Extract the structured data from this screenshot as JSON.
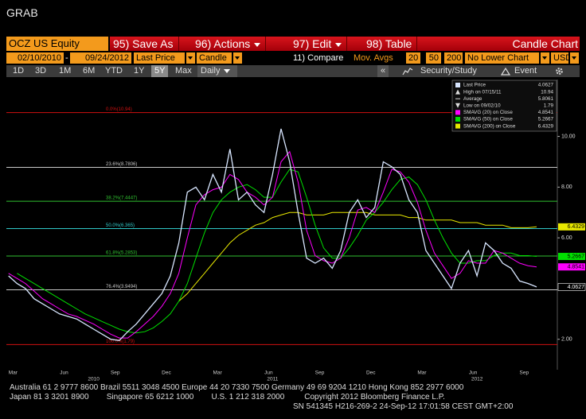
{
  "window_title": "GRAB",
  "toolbar": {
    "security": "OCZ US Equity",
    "buttons": [
      "95) Save As",
      "96) Actions",
      "97) Edit",
      "98) Table"
    ],
    "chart_title": "Candle Chart"
  },
  "settings": {
    "start_date": "02/10/2010",
    "date_separator": "-",
    "end_date": "09/24/2012",
    "field": "Last Price",
    "style": "Candle",
    "compare": "11) Compare",
    "mov_avgs_label": "Mov. Avgs",
    "mov_avgs": [
      20,
      50,
      200
    ],
    "lower_chart": "No Lower Chart",
    "currency": "USD"
  },
  "periods": {
    "options": [
      "1D",
      "3D",
      "1M",
      "6M",
      "YTD",
      "1Y",
      "5Y",
      "Max"
    ],
    "selected": "5Y",
    "frequency": "Daily",
    "collapse": "«",
    "security_study": "Security/Study",
    "event": "Event"
  },
  "chart_data": {
    "type": "line",
    "categories": [
      null,
      "Mar",
      null,
      null,
      null,
      null,
      null,
      "Jun",
      null,
      null,
      null,
      null,
      null,
      "Sep",
      null,
      null,
      null,
      null,
      null,
      "Dec",
      null,
      null,
      null,
      null,
      null,
      "Mar",
      null,
      null,
      null,
      null,
      null,
      "Jun",
      null,
      null,
      null,
      null,
      null,
      "Sep",
      null,
      null,
      null,
      null,
      null,
      "Dec",
      null,
      null,
      null,
      null,
      null,
      "Mar",
      null,
      null,
      null,
      null,
      null,
      "Jun",
      null,
      null,
      null,
      null,
      null,
      "Sep",
      null
    ],
    "category_years": [
      null,
      null,
      null,
      null,
      null,
      null,
      null,
      null,
      null,
      null,
      "2010",
      null,
      null,
      null,
      null,
      null,
      null,
      null,
      null,
      null,
      null,
      null,
      null,
      null,
      null,
      null,
      null,
      null,
      null,
      null,
      null,
      "2011",
      null,
      null,
      null,
      null,
      null,
      null,
      null,
      null,
      null,
      null,
      null,
      null,
      null,
      null,
      null,
      null,
      null,
      null,
      null,
      null,
      null,
      null,
      null,
      "2012",
      null,
      null,
      null,
      null,
      null,
      null,
      null
    ],
    "series": [
      {
        "name": "Last Price",
        "color": "#d8e6ff",
        "legend_value": 4.0627,
        "values": [
          4.5,
          4.2,
          4.0,
          3.6,
          3.4,
          3.2,
          3.0,
          2.9,
          2.8,
          2.6,
          2.4,
          2.2,
          2.0,
          1.95,
          2.3,
          2.6,
          3.0,
          3.4,
          3.8,
          4.5,
          5.8,
          7.8,
          8.0,
          7.5,
          8.5,
          7.8,
          9.5,
          7.5,
          7.8,
          7.3,
          7.0,
          8.5,
          10.3,
          9.0,
          7.0,
          5.2,
          5.0,
          5.2,
          4.8,
          5.5,
          7.0,
          7.5,
          6.8,
          7.2,
          9.0,
          8.8,
          8.5,
          7.5,
          7.0,
          5.5,
          5.0,
          4.5,
          4.0,
          5.0,
          5.5,
          4.5,
          5.8,
          5.5,
          5.0,
          4.8,
          4.3,
          4.2,
          4.0627
        ]
      },
      {
        "name": "SMAVG (20) on Close",
        "color": "#ff00ff",
        "legend_value": 4.8541,
        "values": [
          4.6,
          4.4,
          4.2,
          3.9,
          3.6,
          3.4,
          3.2,
          3.0,
          2.9,
          2.75,
          2.6,
          2.4,
          2.2,
          2.05,
          2.05,
          2.3,
          2.6,
          2.9,
          3.3,
          3.8,
          4.6,
          6.0,
          7.3,
          7.7,
          7.9,
          8.0,
          8.5,
          8.3,
          7.8,
          7.6,
          7.3,
          7.6,
          9.0,
          9.4,
          8.2,
          6.3,
          5.3,
          5.1,
          5.0,
          5.2,
          6.0,
          7.1,
          7.2,
          7.0,
          7.8,
          8.7,
          8.6,
          8.2,
          7.4,
          6.3,
          5.4,
          4.9,
          4.4,
          4.6,
          5.1,
          5.0,
          5.0,
          5.5,
          5.4,
          5.2,
          5.0,
          4.9,
          4.8541
        ]
      },
      {
        "name": "SMAVG (50) on Close",
        "color": "#00e000",
        "legend_value": 5.2667,
        "values": [
          null,
          4.6,
          4.4,
          4.2,
          4.0,
          3.8,
          3.6,
          3.4,
          3.2,
          3.0,
          2.85,
          2.7,
          2.55,
          2.4,
          2.3,
          2.25,
          2.3,
          2.45,
          2.7,
          3.0,
          3.5,
          4.2,
          5.2,
          6.2,
          7.0,
          7.5,
          7.8,
          8.0,
          8.1,
          7.9,
          7.6,
          7.6,
          8.2,
          8.7,
          8.6,
          7.6,
          6.5,
          5.6,
          5.2,
          5.2,
          5.6,
          6.1,
          6.7,
          7.0,
          7.4,
          7.9,
          8.3,
          8.4,
          8.1,
          7.5,
          6.7,
          6.0,
          5.4,
          5.0,
          5.0,
          5.1,
          5.1,
          5.3,
          5.4,
          5.4,
          5.3,
          5.3,
          5.2667
        ]
      },
      {
        "name": "SMAVG (200) on Close",
        "color": "#e8e800",
        "legend_value": 6.4329,
        "values": [
          null,
          null,
          null,
          null,
          null,
          null,
          null,
          null,
          null,
          null,
          null,
          null,
          null,
          null,
          null,
          null,
          null,
          null,
          null,
          null,
          3.5,
          3.8,
          4.2,
          4.6,
          5.0,
          5.4,
          5.8,
          6.1,
          6.3,
          6.5,
          6.6,
          6.8,
          6.9,
          7.0,
          7.0,
          6.9,
          6.9,
          6.9,
          7.0,
          7.0,
          7.0,
          7.0,
          7.0,
          6.9,
          6.9,
          6.9,
          6.9,
          6.8,
          6.8,
          6.7,
          6.7,
          6.7,
          6.7,
          6.6,
          6.6,
          6.6,
          6.5,
          6.5,
          6.5,
          6.4,
          6.4,
          6.4,
          6.4329
        ]
      }
    ],
    "stats": [
      {
        "label": "High on 07/15/11",
        "value": 10.94
      },
      {
        "label": "Average",
        "value": 5.8061
      },
      {
        "label": "Low on 09/02/10",
        "value": 1.79
      }
    ],
    "fib_levels": [
      {
        "label": "0.0%(10.94)",
        "value": 10.94,
        "color": "#d01010"
      },
      {
        "label": "23.6%(8.7806)",
        "value": 8.7806,
        "color": "#c8c8c8"
      },
      {
        "label": "38.2%(7.4447)",
        "value": 7.4447,
        "color": "#30c030"
      },
      {
        "label": "50.0%(6.365)",
        "value": 6.365,
        "color": "#30c8c8"
      },
      {
        "label": "61.8%(5.2853)",
        "value": 5.2853,
        "color": "#30c030"
      },
      {
        "label": "76.4%(3.9494)",
        "value": 3.9494,
        "color": "#c8c8c8"
      },
      {
        "label": "100.0%(1.79)",
        "value": 1.79,
        "color": "#d01010"
      }
    ],
    "ylim": [
      0.8,
      12.15
    ],
    "yticks": [
      {
        "value": 2,
        "label": "2.00"
      },
      {
        "value": 6,
        "label": "6.00"
      },
      {
        "value": 8,
        "label": "8.00"
      },
      {
        "value": 10,
        "label": "10.00"
      }
    ]
  },
  "footer": {
    "lines": [
      "Australia 61 2 9777 8600 Brazil 5511 3048 4500 Europe 44 20 7330 7500 Germany 49 69 9204 1210 Hong Kong 852 2977 6000",
      "Japan 81 3 3201 8900        Singapore 65 6212 1000        U.S. 1 212 318 2000         Copyright 2012 Bloomberg Finance L.P.",
      "SN 541345 H216-269-2 24-Sep-12 17:01:58 CEST GMT+2:00"
    ]
  }
}
